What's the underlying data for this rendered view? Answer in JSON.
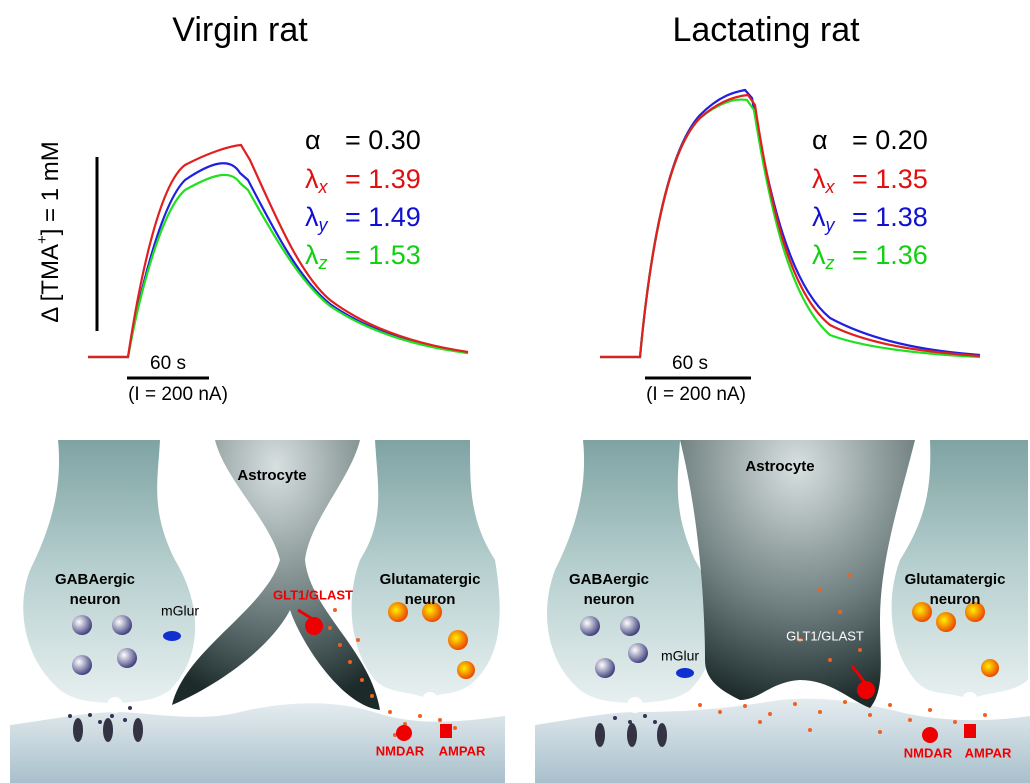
{
  "y_scale_label": {
    "prefix": "Δ [TMA",
    "superscript": "+",
    "suffix": "] = 1 mM"
  },
  "panels": [
    {
      "title": "Virgin rat",
      "params": [
        {
          "symbol": "α",
          "value": "= 0.30"
        },
        {
          "symbol": "λ",
          "subscript": "x",
          "value": "= 1.39"
        },
        {
          "symbol": "λ",
          "subscript": "y",
          "value": "= 1.49"
        },
        {
          "symbol": "λ",
          "subscript": "z",
          "value": "= 1.53"
        }
      ],
      "time_bar": "60 s",
      "current": "(I = 200 nA)",
      "diagram": {
        "astrocyte": "Astrocyte",
        "gabaergic": [
          "GABAergic",
          "neuron"
        ],
        "mglur": "mGlur",
        "transporter": "GLT1/GLAST",
        "glutamatergic": [
          "Glutamatergic",
          "neuron"
        ],
        "nmdar": "NMDAR",
        "ampar": "AMPAR"
      }
    },
    {
      "title": "Lactating rat",
      "params": [
        {
          "symbol": "α",
          "value": "= 0.20"
        },
        {
          "symbol": "λ",
          "subscript": "x",
          "value": "= 1.35"
        },
        {
          "symbol": "λ",
          "subscript": "y",
          "value": "= 1.38"
        },
        {
          "symbol": "λ",
          "subscript": "z",
          "value": "= 1.36"
        }
      ],
      "time_bar": "60 s",
      "current": "(I = 200 nA)",
      "diagram": {
        "astrocyte": "Astrocyte",
        "gabaergic": [
          "GABAergic",
          "neuron"
        ],
        "mglur": "mGlur",
        "transporter": "GLT1/GLAST",
        "glutamatergic": [
          "Glutamatergic",
          "neuron"
        ],
        "nmdar": "NMDAR",
        "ampar": "AMPAR"
      }
    }
  ]
}
